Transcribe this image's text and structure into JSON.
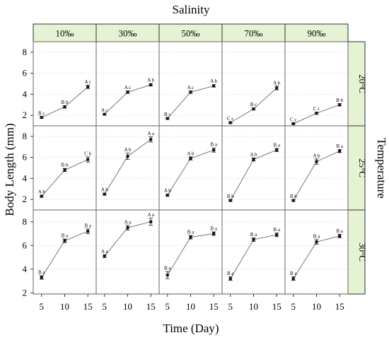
{
  "chart_data": {
    "type": "line",
    "top_title": "Salinity",
    "right_title": "Temperature",
    "xlabel": "Time (Day)",
    "ylabel": "Body Length (mm)",
    "salinity_levels": [
      "10‰",
      "30‰",
      "50‰",
      "70‰",
      "90‰"
    ],
    "temperature_levels": [
      "20°C",
      "25°C",
      "30°C"
    ],
    "x": [
      5,
      10,
      15
    ],
    "xticks": [
      "5",
      "10",
      "15"
    ],
    "rows": [
      {
        "ylim": [
          1,
          9
        ],
        "yticks": [
          "2",
          "4",
          "6",
          "8"
        ],
        "panels": [
          {
            "values": [
              1.8,
              2.8,
              4.7
            ],
            "errors": [
              0.08,
              0.12,
              0.15
            ],
            "labels": [
              "B c",
              "B b",
              "A c"
            ]
          },
          {
            "values": [
              2.1,
              4.2,
              4.9
            ],
            "errors": [
              0.08,
              0.12,
              0.12
            ],
            "labels": [
              "A c",
              "A c",
              "A b"
            ]
          },
          {
            "values": [
              1.7,
              4.2,
              4.8
            ],
            "errors": [
              0.08,
              0.12,
              0.12
            ],
            "labels": [
              "B c",
              "A c",
              "A b"
            ]
          },
          {
            "values": [
              1.3,
              2.6,
              4.6
            ],
            "errors": [
              0.06,
              0.1,
              0.18
            ],
            "labels": [
              "C c",
              "B c",
              "A b"
            ]
          },
          {
            "values": [
              1.2,
              2.2,
              3.0
            ],
            "errors": [
              0.06,
              0.1,
              0.12
            ],
            "labels": [
              "C c",
              "C c",
              "B b"
            ]
          }
        ]
      },
      {
        "ylim": [
          1,
          9
        ],
        "yticks": [
          "2",
          "4",
          "6",
          "8"
        ],
        "panels": [
          {
            "values": [
              2.3,
              4.8,
              5.8
            ],
            "errors": [
              0.1,
              0.15,
              0.25
            ],
            "labels": [
              "A b",
              "B b",
              "C b"
            ]
          },
          {
            "values": [
              2.5,
              6.1,
              7.7
            ],
            "errors": [
              0.1,
              0.3,
              0.25
            ],
            "labels": [
              "A b",
              "A b",
              "A a"
            ]
          },
          {
            "values": [
              2.4,
              5.9,
              6.7
            ],
            "errors": [
              0.1,
              0.15,
              0.2
            ],
            "labels": [
              "A b",
              "A b",
              "B a"
            ]
          },
          {
            "values": [
              1.9,
              5.8,
              6.7
            ],
            "errors": [
              0.08,
              0.15,
              0.15
            ],
            "labels": [
              "B b",
              "A b",
              "B a"
            ]
          },
          {
            "values": [
              1.9,
              5.6,
              6.6
            ],
            "errors": [
              0.08,
              0.25,
              0.15
            ],
            "labels": [
              "B b",
              "A b",
              "B a"
            ]
          }
        ]
      },
      {
        "ylim": [
          1.9,
          9
        ],
        "yticks": [
          "2",
          "4",
          "6",
          "8"
        ],
        "panels": [
          {
            "values": [
              3.3,
              6.4,
              7.2
            ],
            "errors": [
              0.15,
              0.15,
              0.2
            ],
            "labels": [
              "B a",
              "B a",
              "B a"
            ]
          },
          {
            "values": [
              5.1,
              7.5,
              8.0
            ],
            "errors": [
              0.12,
              0.2,
              0.3
            ],
            "labels": [
              "A a",
              "A a",
              "A a"
            ]
          },
          {
            "values": [
              3.5,
              6.7,
              7.0
            ],
            "errors": [
              0.3,
              0.15,
              0.15
            ],
            "labels": [
              "B a",
              "B a",
              "B a"
            ]
          },
          {
            "values": [
              3.2,
              6.5,
              6.9
            ],
            "errors": [
              0.15,
              0.15,
              0.15
            ],
            "labels": [
              "B a",
              "B a",
              "B a"
            ]
          },
          {
            "values": [
              3.2,
              6.3,
              6.8
            ],
            "errors": [
              0.15,
              0.2,
              0.15
            ],
            "labels": [
              "B a",
              "B a",
              "B a"
            ]
          }
        ]
      }
    ]
  }
}
